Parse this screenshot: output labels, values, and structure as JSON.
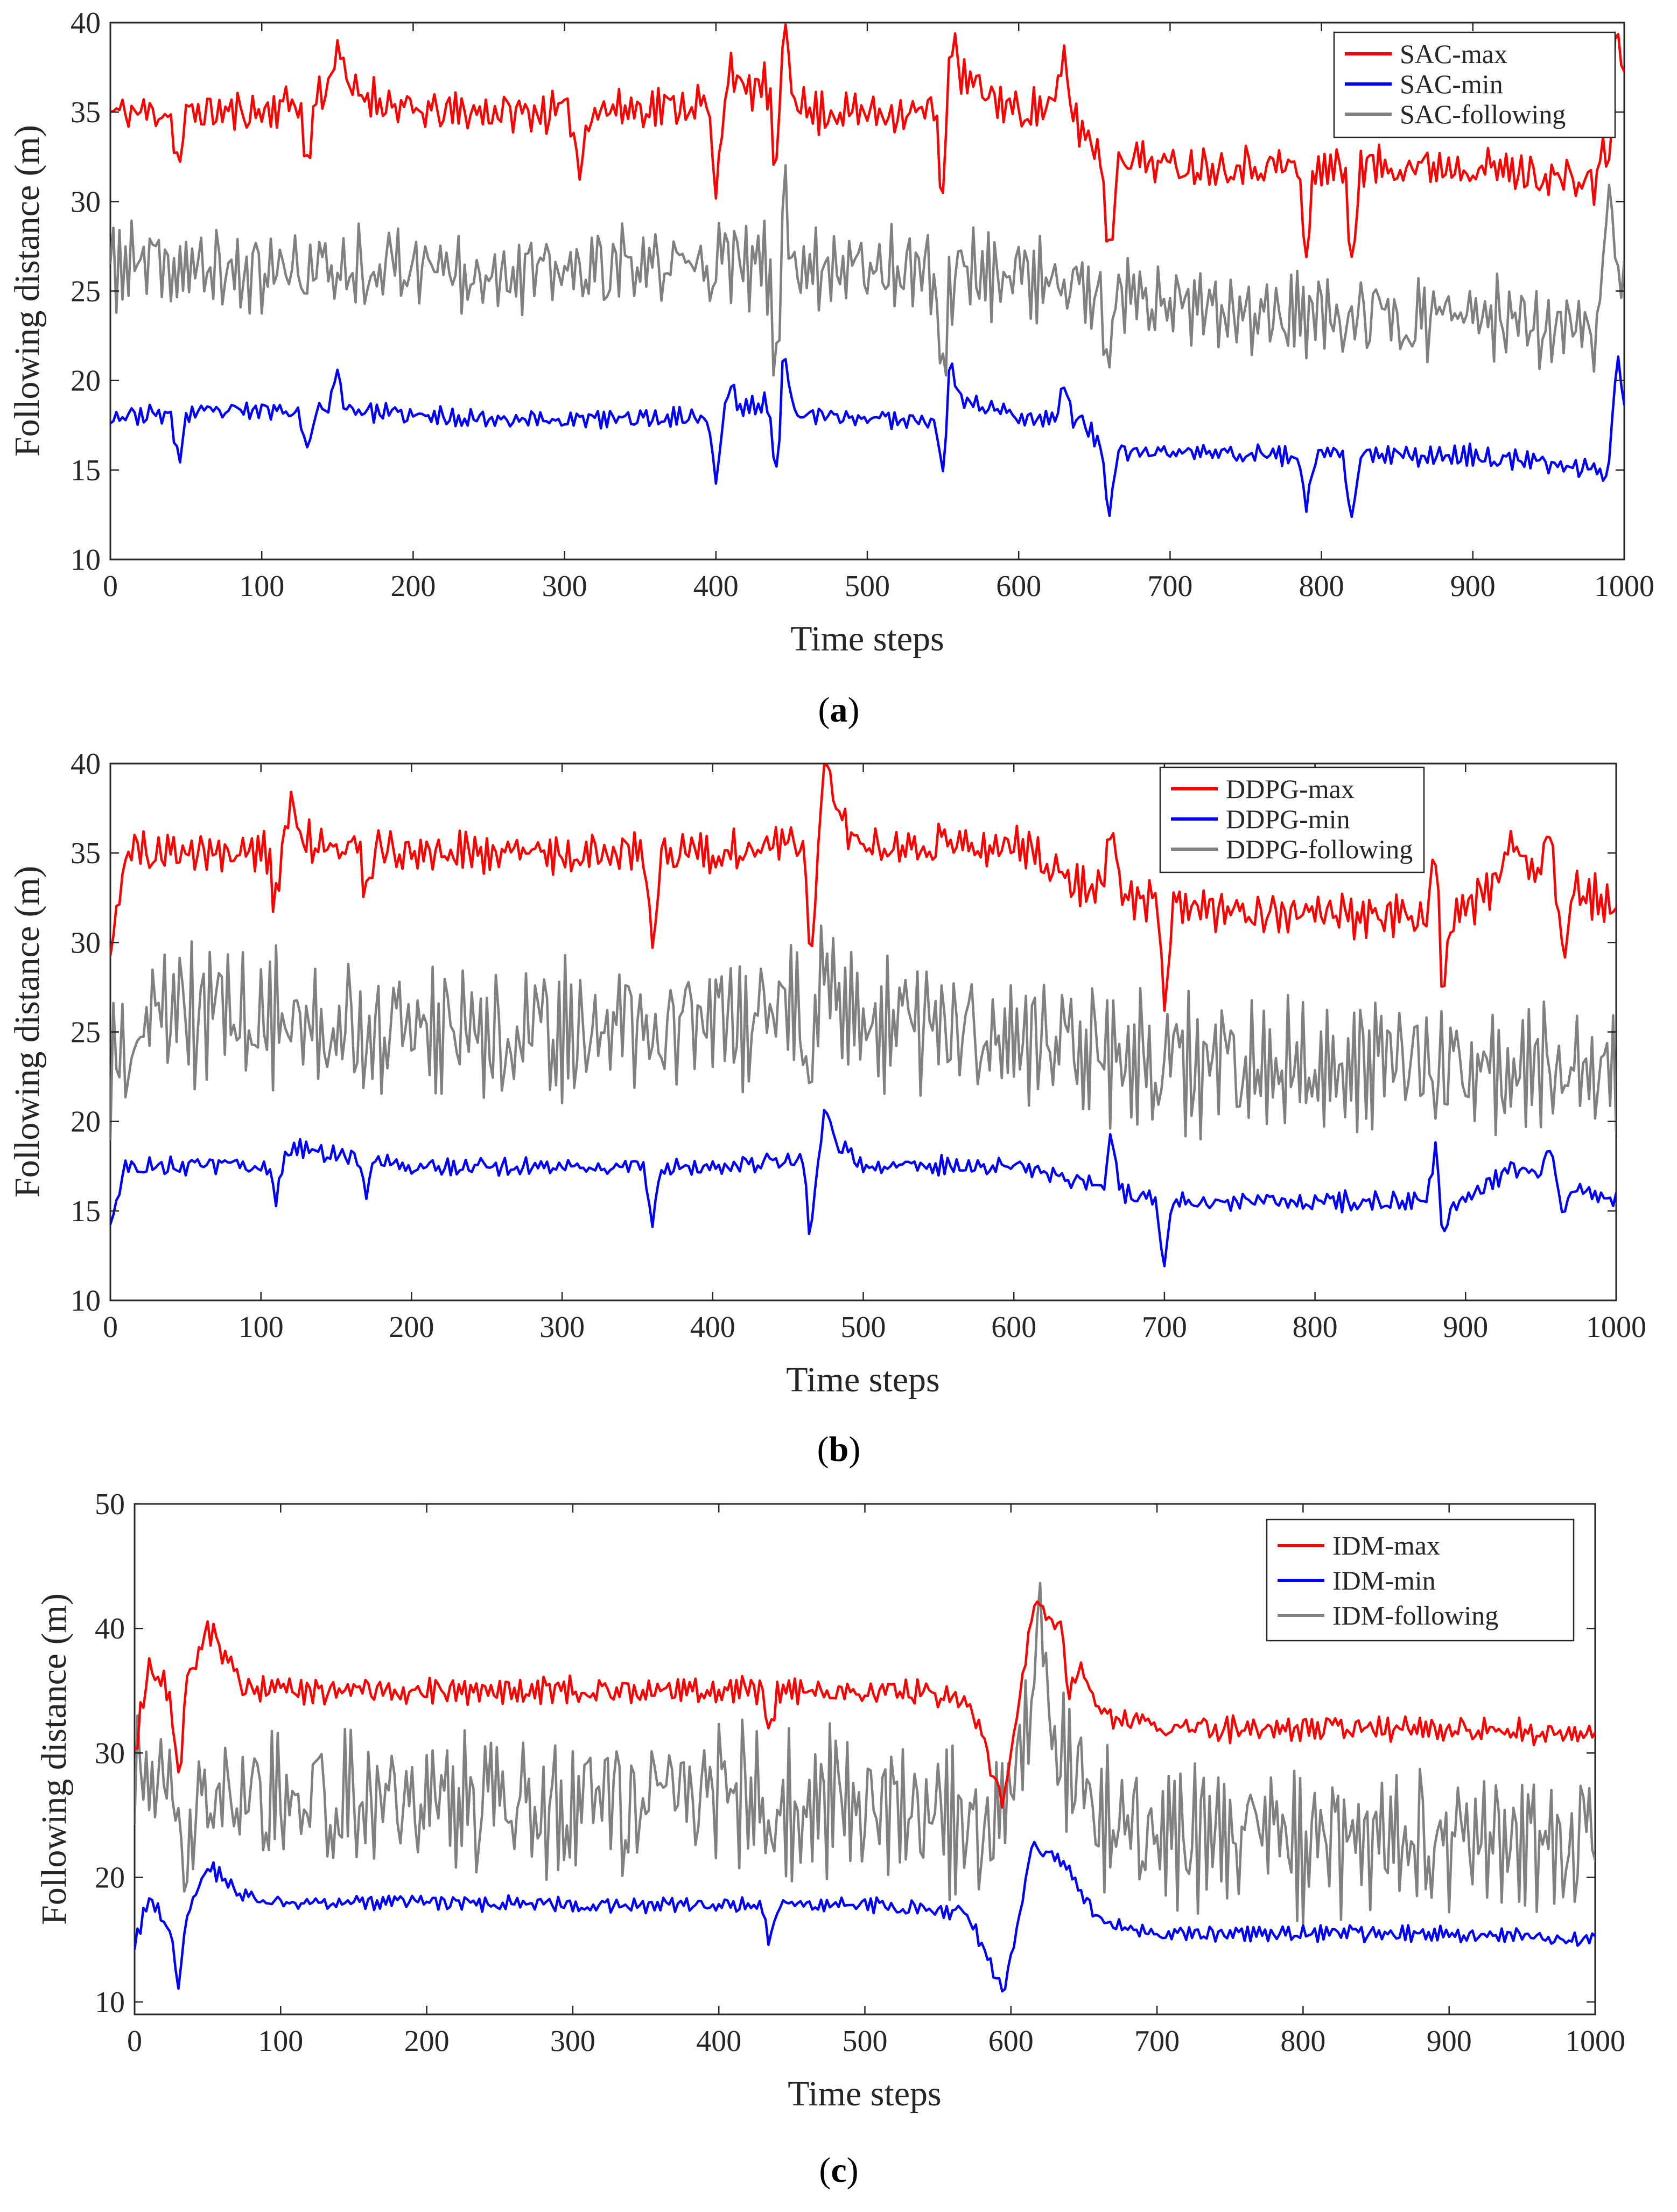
{
  "figure": {
    "xlabel": "Time steps",
    "ylabel": "Following distance (m)"
  },
  "chart_data": [
    {
      "panel": "a",
      "caption": {
        "open": "(",
        "letter": "a",
        "close": ")"
      },
      "type": "line",
      "xlabel": "Time steps",
      "ylabel": "Following distance (m)",
      "xlim": [
        0,
        1000
      ],
      "ylim": [
        10,
        40
      ],
      "xticks": [
        0,
        100,
        200,
        300,
        400,
        500,
        600,
        700,
        800,
        900,
        1000
      ],
      "yticks": [
        10,
        15,
        20,
        25,
        30,
        35,
        40
      ],
      "legend_position": "top-right",
      "series": [
        {
          "name": "SAC-max",
          "color": "#ff0000",
          "noise": 1.3,
          "seed": 11,
          "profile": [
            [
              0,
              35
            ],
            [
              100,
              35
            ],
            [
              150,
              36.5
            ],
            [
              200,
              35
            ],
            [
              300,
              35
            ],
            [
              400,
              35.5
            ],
            [
              445,
              37
            ],
            [
              460,
              35
            ],
            [
              540,
              35
            ],
            [
              560,
              37
            ],
            [
              600,
              35
            ],
            [
              630,
              35.5
            ],
            [
              650,
              33
            ],
            [
              700,
              32
            ],
            [
              800,
              32
            ],
            [
              900,
              32
            ],
            [
              980,
              31
            ],
            [
              995,
              37
            ],
            [
              1000,
              36
            ]
          ],
          "events": [
            [
              45,
              -3
            ],
            [
              130,
              -4
            ],
            [
              150,
              2.5
            ],
            [
              310,
              -3.5
            ],
            [
              400,
              -5
            ],
            [
              410,
              2
            ],
            [
              440,
              -6
            ],
            [
              445,
              4
            ],
            [
              550,
              -5.5
            ],
            [
              555,
              3
            ],
            [
              630,
              2.5
            ],
            [
              660,
              -6
            ],
            [
              790,
              -5
            ],
            [
              820,
              -5
            ],
            [
              990,
              -3
            ],
            [
              995,
              3
            ]
          ]
        },
        {
          "name": "SAC-min",
          "color": "#0000ff",
          "noise": 0.6,
          "seed": 23,
          "profile": [
            [
              0,
              18
            ],
            [
              150,
              18.5
            ],
            [
              200,
              18
            ],
            [
              300,
              17.8
            ],
            [
              400,
              18
            ],
            [
              420,
              18.5
            ],
            [
              445,
              19
            ],
            [
              460,
              18
            ],
            [
              540,
              17.8
            ],
            [
              560,
              19
            ],
            [
              600,
              18
            ],
            [
              640,
              17.8
            ],
            [
              660,
              16
            ],
            [
              700,
              16
            ],
            [
              800,
              15.8
            ],
            [
              900,
              15.8
            ],
            [
              985,
              15
            ],
            [
              995,
              19.5
            ],
            [
              1000,
              18.5
            ]
          ],
          "events": [
            [
              45,
              -2.5
            ],
            [
              130,
              -2.5
            ],
            [
              150,
              1.8
            ],
            [
              400,
              -3.5
            ],
            [
              410,
              1.5
            ],
            [
              440,
              -4.5
            ],
            [
              445,
              3
            ],
            [
              550,
              -3.5
            ],
            [
              555,
              2.5
            ],
            [
              630,
              2
            ],
            [
              660,
              -3.5
            ],
            [
              790,
              -3
            ],
            [
              820,
              -3.5
            ],
            [
              990,
              -2
            ],
            [
              995,
              2
            ]
          ]
        },
        {
          "name": "SAC-following",
          "color": "#808080",
          "noise": 2.6,
          "seed": 37,
          "profile": [
            [
              0,
              26.5
            ],
            [
              100,
              26
            ],
            [
              200,
              26.5
            ],
            [
              300,
              26
            ],
            [
              400,
              26.5
            ],
            [
              500,
              26.5
            ],
            [
              600,
              26
            ],
            [
              660,
              24.5
            ],
            [
              700,
              24
            ],
            [
              800,
              23.5
            ],
            [
              900,
              23.5
            ],
            [
              980,
              22.5
            ],
            [
              1000,
              27
            ]
          ],
          "events": [
            [
              440,
              -7
            ],
            [
              445,
              5
            ],
            [
              550,
              -6
            ],
            [
              660,
              -4
            ],
            [
              990,
              6
            ]
          ]
        }
      ]
    },
    {
      "panel": "b",
      "caption": {
        "open": "(",
        "letter": "b",
        "close": ")"
      },
      "type": "line",
      "xlabel": "Time steps",
      "ylabel": "Following distance (m)",
      "xlim": [
        0,
        1000
      ],
      "ylim": [
        10,
        40
      ],
      "xticks": [
        0,
        100,
        200,
        300,
        400,
        500,
        600,
        700,
        800,
        900,
        1000
      ],
      "yticks": [
        10,
        15,
        20,
        25,
        30,
        35,
        40
      ],
      "legend_position": "top-right",
      "series": [
        {
          "name": "DDPG-max",
          "color": "#ff0000",
          "noise": 1.3,
          "seed": 51,
          "profile": [
            [
              0,
              30
            ],
            [
              10,
              35
            ],
            [
              100,
              35
            ],
            [
              120,
              36
            ],
            [
              200,
              35
            ],
            [
              300,
              35
            ],
            [
              400,
              35
            ],
            [
              470,
              36
            ],
            [
              480,
              37.5
            ],
            [
              500,
              35.5
            ],
            [
              600,
              35.5
            ],
            [
              650,
              33
            ],
            [
              700,
              32
            ],
            [
              800,
              31.5
            ],
            [
              900,
              31.5
            ],
            [
              930,
              34.5
            ],
            [
              1000,
              32
            ]
          ],
          "events": [
            [
              110,
              -3.5
            ],
            [
              120,
              2
            ],
            [
              170,
              -3
            ],
            [
              360,
              -5
            ],
            [
              465,
              -6.5
            ],
            [
              475,
              3.5
            ],
            [
              665,
              4
            ],
            [
              700,
              -5
            ],
            [
              880,
              4
            ],
            [
              885,
              -4.5
            ],
            [
              930,
              2
            ],
            [
              955,
              3
            ],
            [
              965,
              -4
            ]
          ]
        },
        {
          "name": "DDPG-min",
          "color": "#0000ff",
          "noise": 0.6,
          "seed": 63,
          "profile": [
            [
              0,
              14.5
            ],
            [
              10,
              17.5
            ],
            [
              100,
              17.5
            ],
            [
              120,
              18.5
            ],
            [
              200,
              17.5
            ],
            [
              300,
              17.5
            ],
            [
              400,
              17.5
            ],
            [
              470,
              18
            ],
            [
              480,
              19
            ],
            [
              500,
              17.5
            ],
            [
              600,
              17.5
            ],
            [
              650,
              16.5
            ],
            [
              700,
              15.5
            ],
            [
              800,
              15.5
            ],
            [
              900,
              15.5
            ],
            [
              930,
              17.5
            ],
            [
              1000,
              15.5
            ]
          ],
          "events": [
            [
              110,
              -2.5
            ],
            [
              170,
              -2
            ],
            [
              360,
              -3
            ],
            [
              465,
              -4
            ],
            [
              475,
              2
            ],
            [
              665,
              3
            ],
            [
              700,
              -3.5
            ],
            [
              880,
              3
            ],
            [
              885,
              -2
            ],
            [
              955,
              2
            ],
            [
              965,
              -2
            ]
          ]
        },
        {
          "name": "DDPG-following",
          "color": "#808080",
          "noise": 4.0,
          "seed": 79,
          "profile": [
            [
              0,
              22
            ],
            [
              20,
              26
            ],
            [
              100,
              26
            ],
            [
              200,
              25
            ],
            [
              300,
              25
            ],
            [
              400,
              25.5
            ],
            [
              480,
              26.5
            ],
            [
              500,
              25.5
            ],
            [
              600,
              25
            ],
            [
              650,
              24
            ],
            [
              700,
              23
            ],
            [
              800,
              23
            ],
            [
              900,
              23
            ],
            [
              1000,
              23
            ]
          ],
          "events": [
            [
              465,
              -5
            ],
            [
              475,
              4
            ]
          ]
        }
      ]
    },
    {
      "panel": "c",
      "caption": {
        "open": "(",
        "letter": "c",
        "close": ")"
      },
      "type": "line",
      "xlabel": "Time steps",
      "ylabel": "Following distance (m)",
      "xlim": [
        0,
        1000
      ],
      "ylim": [
        9,
        50
      ],
      "xticks": [
        0,
        100,
        200,
        300,
        400,
        500,
        600,
        700,
        800,
        900,
        1000
      ],
      "yticks": [
        10,
        20,
        30,
        40,
        50
      ],
      "legend_position": "top-right",
      "series": [
        {
          "name": "IDM-max",
          "color": "#ff0000",
          "noise": 1.2,
          "seed": 91,
          "profile": [
            [
              0,
              30
            ],
            [
              10,
              37
            ],
            [
              30,
              34
            ],
            [
              50,
              40
            ],
            [
              75,
              35
            ],
            [
              100,
              35
            ],
            [
              200,
              35
            ],
            [
              300,
              35
            ],
            [
              400,
              35
            ],
            [
              500,
              35
            ],
            [
              570,
              34.5
            ],
            [
              595,
              26
            ],
            [
              615,
              42
            ],
            [
              635,
              40
            ],
            [
              660,
              33
            ],
            [
              700,
              32
            ],
            [
              800,
              32
            ],
            [
              900,
              32
            ],
            [
              1000,
              31.5
            ]
          ],
          "events": [
            [
              30,
              -6
            ],
            [
              435,
              -3
            ],
            [
              640,
              -4
            ]
          ]
        },
        {
          "name": "IDM-min",
          "color": "#0000ff",
          "noise": 0.7,
          "seed": 103,
          "profile": [
            [
              0,
              14.5
            ],
            [
              10,
              18.5
            ],
            [
              30,
              15
            ],
            [
              50,
              21
            ],
            [
              75,
              18.5
            ],
            [
              100,
              18
            ],
            [
              200,
              18
            ],
            [
              300,
              17.8
            ],
            [
              400,
              17.8
            ],
            [
              500,
              17.8
            ],
            [
              570,
              17.2
            ],
            [
              595,
              10.8
            ],
            [
              615,
              22.5
            ],
            [
              635,
              21.5
            ],
            [
              660,
              16.5
            ],
            [
              700,
              15.5
            ],
            [
              800,
              15.5
            ],
            [
              900,
              15.5
            ],
            [
              1000,
              15
            ]
          ],
          "events": [
            [
              30,
              -3.5
            ],
            [
              435,
              -3
            ]
          ]
        },
        {
          "name": "IDM-following",
          "color": "#808080",
          "noise": 6.5,
          "seed": 127,
          "profile": [
            [
              0,
              27
            ],
            [
              50,
              26
            ],
            [
              100,
              26
            ],
            [
              200,
              26
            ],
            [
              300,
              26
            ],
            [
              400,
              26
            ],
            [
              500,
              25.5
            ],
            [
              570,
              25
            ],
            [
              595,
              24
            ],
            [
              615,
              32
            ],
            [
              640,
              30
            ],
            [
              660,
              24
            ],
            [
              700,
              24
            ],
            [
              800,
              23
            ],
            [
              900,
              23
            ],
            [
              1000,
              23
            ]
          ],
          "events": [
            [
              35,
              -8
            ],
            [
              620,
              10
            ]
          ]
        }
      ]
    }
  ]
}
